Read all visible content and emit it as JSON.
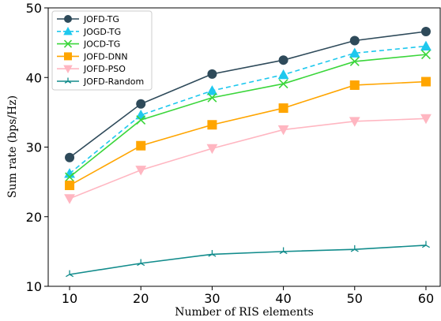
{
  "chart_data": {
    "type": "line",
    "xlabel": "Number of RIS elements",
    "ylabel": "Sum rate (bps/Hz)",
    "x": [
      10,
      20,
      30,
      40,
      50,
      60
    ],
    "xticks": [
      10,
      20,
      30,
      40,
      50,
      60
    ],
    "yticks": [
      10,
      20,
      30,
      40,
      50
    ],
    "xlim": [
      7,
      62
    ],
    "ylim": [
      10,
      50
    ],
    "grid": false,
    "legend_position": "top-left",
    "series": [
      {
        "name": "JOFD-TG",
        "values": [
          28.5,
          36.2,
          40.5,
          42.5,
          45.3,
          46.6
        ],
        "color": "#2e4a5a",
        "dash": "solid",
        "marker": "circle"
      },
      {
        "name": "JOGD-TG",
        "values": [
          26.2,
          34.6,
          38.1,
          40.4,
          43.5,
          44.5
        ],
        "color": "#1ec8ee",
        "dash": "dashed",
        "marker": "triangle-up"
      },
      {
        "name": "JOCD-TG",
        "values": [
          25.7,
          33.9,
          37.1,
          39.1,
          42.3,
          43.3
        ],
        "color": "#3bd63b",
        "dash": "solid",
        "marker": "x"
      },
      {
        "name": "JOFD-DNN",
        "values": [
          24.5,
          30.2,
          33.2,
          35.6,
          38.9,
          39.4
        ],
        "color": "#ffa500",
        "dash": "solid",
        "marker": "square"
      },
      {
        "name": "JOFD-PSO",
        "values": [
          22.6,
          26.7,
          29.8,
          32.5,
          33.7,
          34.1
        ],
        "color": "#ffb6c1",
        "dash": "solid",
        "marker": "triangle-down"
      },
      {
        "name": "JOFD-Random",
        "values": [
          11.7,
          13.3,
          14.6,
          15.0,
          15.3,
          15.9
        ],
        "color": "#128c8c",
        "dash": "solid",
        "marker": "tri"
      }
    ]
  }
}
